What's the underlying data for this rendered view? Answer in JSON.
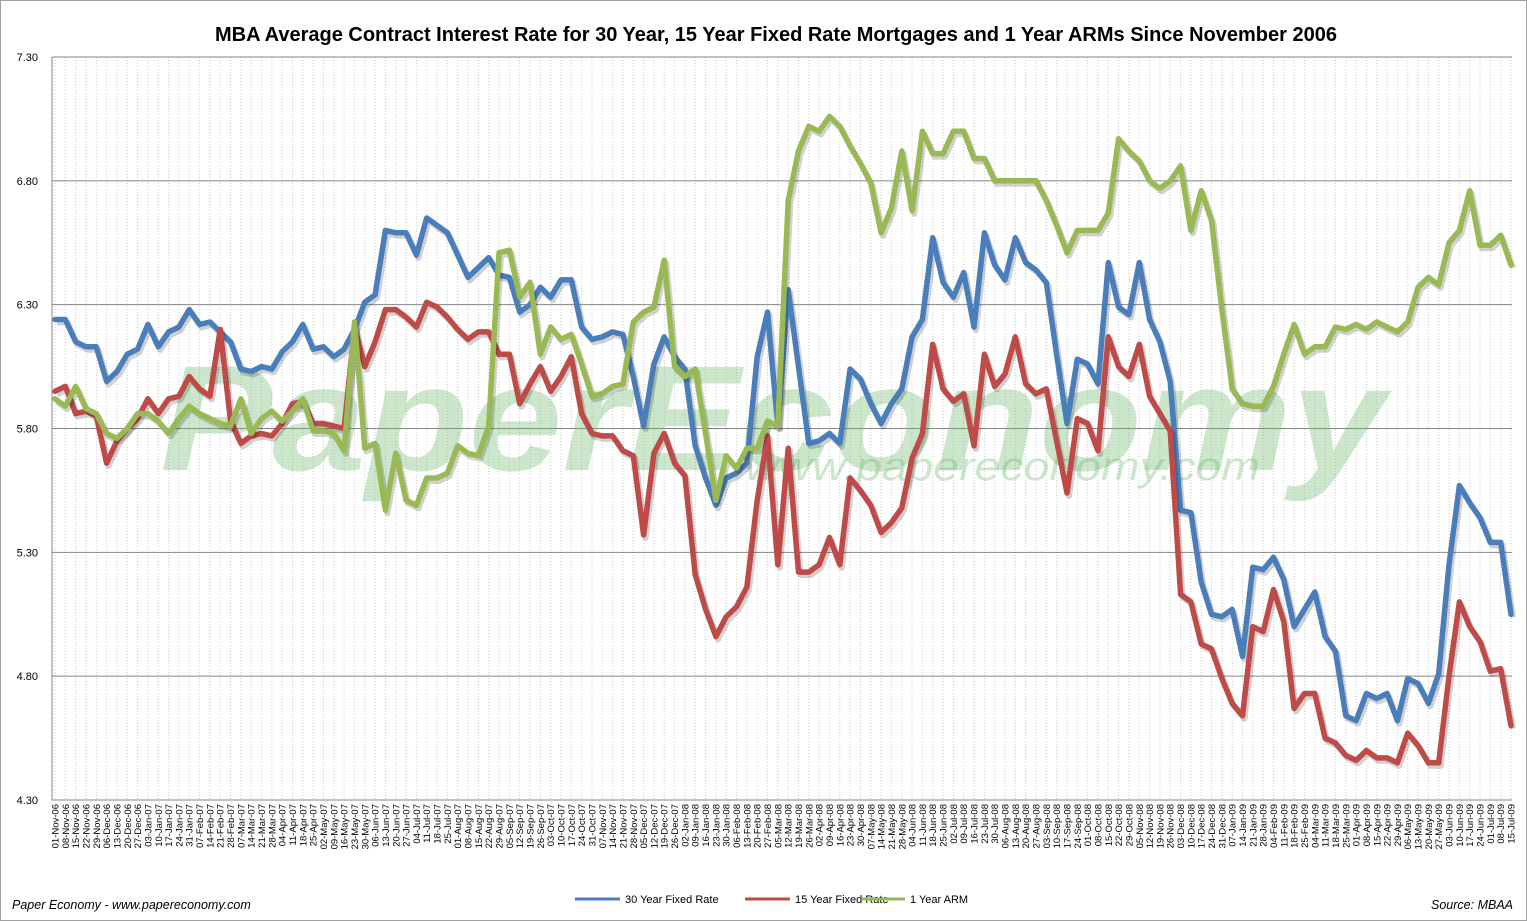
{
  "chart_data": {
    "type": "line",
    "title": "MBA Average Contract Interest Rate for 30 Year, 15 Year Fixed Rate Mortgages and 1 Year ARMs Since November 2006",
    "xlabel": "",
    "ylabel": "",
    "ylim": [
      4.3,
      7.3
    ],
    "yticks": [
      "4.30",
      "4.80",
      "5.30",
      "5.80",
      "6.30",
      "6.80",
      "7.30"
    ],
    "grid": {
      "horizontal": true,
      "vertical": "dotted"
    },
    "legend_position": "bottom",
    "categories": [
      "01-Nov-06",
      "08-Nov-06",
      "15-Nov-06",
      "22-Nov-06",
      "29-Nov-06",
      "06-Dec-06",
      "13-Dec-06",
      "20-Dec-06",
      "27-Dec-06",
      "03-Jan-07",
      "10-Jan-07",
      "17-Jan-07",
      "24-Jan-07",
      "31-Jan-07",
      "07-Feb-07",
      "14-Feb-07",
      "21-Feb-07",
      "28-Feb-07",
      "07-Mar-07",
      "14-Mar-07",
      "21-Mar-07",
      "28-Mar-07",
      "04-Apr-07",
      "11-Apr-07",
      "18-Apr-07",
      "25-Apr-07",
      "02-May-07",
      "09-May-07",
      "16-May-07",
      "23-May-07",
      "30-May-07",
      "06-Jun-07",
      "13-Jun-07",
      "20-Jun-07",
      "27-Jun-07",
      "04-Jul-07",
      "11-Jul-07",
      "18-Jul-07",
      "25-Jul-07",
      "01-Aug-07",
      "08-Aug-07",
      "15-Aug-07",
      "22-Aug-07",
      "29-Aug-07",
      "05-Sep-07",
      "12-Sep-07",
      "19-Sep-07",
      "26-Sep-07",
      "03-Oct-07",
      "10-Oct-07",
      "17-Oct-07",
      "24-Oct-07",
      "31-Oct-07",
      "07-Nov-07",
      "14-Nov-07",
      "21-Nov-07",
      "28-Nov-07",
      "05-Dec-07",
      "12-Dec-07",
      "19-Dec-07",
      "26-Dec-07",
      "02-Jan-08",
      "09-Jan-08",
      "16-Jan-08",
      "23-Jan-08",
      "30-Jan-08",
      "06-Feb-08",
      "13-Feb-08",
      "20-Feb-08",
      "27-Feb-08",
      "05-Mar-08",
      "12-Mar-08",
      "19-Mar-08",
      "26-Mar-08",
      "02-Apr-08",
      "09-Apr-08",
      "16-Apr-08",
      "23-Apr-08",
      "30-Apr-08",
      "07-May-08",
      "14-May-08",
      "21-May-08",
      "28-May-08",
      "04-Jun-08",
      "11-Jun-08",
      "18-Jun-08",
      "25-Jun-08",
      "02-Jul-08",
      "09-Jul-08",
      "16-Jul-08",
      "23-Jul-08",
      "30-Jul-08",
      "06-Aug-08",
      "13-Aug-08",
      "20-Aug-08",
      "27-Aug-08",
      "03-Sep-08",
      "10-Sep-08",
      "17-Sep-08",
      "24-Sep-08",
      "01-Oct-08",
      "08-Oct-08",
      "15-Oct-08",
      "22-Oct-08",
      "29-Oct-08",
      "05-Nov-08",
      "12-Nov-08",
      "19-Nov-08",
      "26-Nov-08",
      "03-Dec-08",
      "10-Dec-08",
      "17-Dec-08",
      "24-Dec-08",
      "31-Dec-08",
      "07-Jan-09",
      "14-Jan-09",
      "21-Jan-09",
      "28-Jan-09",
      "04-Feb-09",
      "11-Feb-09",
      "18-Feb-09",
      "25-Feb-09",
      "04-Mar-09",
      "11-Mar-09",
      "18-Mar-09",
      "25-Mar-09",
      "01-Apr-09",
      "08-Apr-09",
      "15-Apr-09",
      "22-Apr-09",
      "29-Apr-09",
      "06-May-09",
      "13-May-09",
      "20-May-09",
      "27-May-09",
      "03-Jun-09",
      "10-Jun-09",
      "17-Jun-09",
      "24-Jun-09",
      "01-Jul-09",
      "08-Jul-09",
      "15-Jul-09"
    ],
    "series": [
      {
        "name": "30 Year Fixed Rate",
        "color": "#4a7ebb",
        "values": [
          6.24,
          6.24,
          6.15,
          6.13,
          6.13,
          5.99,
          6.03,
          6.1,
          6.12,
          6.22,
          6.13,
          6.19,
          6.21,
          6.28,
          6.22,
          6.23,
          6.19,
          6.15,
          6.04,
          6.03,
          6.05,
          6.04,
          6.11,
          6.15,
          6.22,
          6.12,
          6.13,
          6.09,
          6.12,
          6.2,
          6.31,
          6.34,
          6.6,
          6.59,
          6.59,
          6.5,
          6.65,
          6.62,
          6.59,
          6.5,
          6.41,
          6.45,
          6.49,
          6.42,
          6.41,
          6.27,
          6.3,
          6.37,
          6.33,
          6.4,
          6.4,
          6.21,
          6.16,
          6.17,
          6.19,
          6.18,
          6.01,
          5.81,
          6.06,
          6.17,
          6.09,
          6.04,
          5.73,
          5.6,
          5.49,
          5.6,
          5.62,
          5.66,
          6.09,
          6.27,
          5.81,
          6.36,
          6.05,
          5.74,
          5.75,
          5.78,
          5.74,
          6.04,
          6.0,
          5.9,
          5.82,
          5.9,
          5.96,
          6.17,
          6.24,
          6.57,
          6.39,
          6.33,
          6.43,
          6.21,
          6.59,
          6.46,
          6.4,
          6.57,
          6.47,
          6.44,
          6.39,
          6.1,
          5.82,
          6.08,
          6.06,
          5.98,
          6.47,
          6.29,
          6.26,
          6.47,
          6.24,
          6.15,
          5.99,
          5.47,
          5.46,
          5.18,
          5.05,
          5.04,
          5.07,
          4.88,
          5.24,
          5.23,
          5.28,
          5.19,
          5.0,
          5.07,
          5.14,
          4.96,
          4.9,
          4.64,
          4.62,
          4.73,
          4.71,
          4.73,
          4.62,
          4.79,
          4.77,
          4.69,
          4.81,
          5.25,
          5.57,
          5.5,
          5.44,
          5.34,
          5.34,
          5.05
        ]
      },
      {
        "name": "15 Year Fixed Rate",
        "color": "#be4b48",
        "values": [
          5.95,
          5.97,
          5.86,
          5.87,
          5.85,
          5.66,
          5.75,
          5.8,
          5.84,
          5.92,
          5.86,
          5.92,
          5.93,
          6.01,
          5.96,
          5.93,
          6.2,
          5.83,
          5.74,
          5.77,
          5.78,
          5.77,
          5.82,
          5.9,
          5.91,
          5.82,
          5.82,
          5.81,
          5.8,
          6.21,
          6.05,
          6.15,
          6.28,
          6.28,
          6.25,
          6.21,
          6.31,
          6.29,
          6.25,
          6.2,
          6.16,
          6.19,
          6.19,
          6.1,
          6.1,
          5.9,
          5.98,
          6.05,
          5.95,
          6.01,
          6.09,
          5.86,
          5.78,
          5.77,
          5.77,
          5.71,
          5.69,
          5.37,
          5.7,
          5.78,
          5.66,
          5.61,
          5.21,
          5.07,
          4.96,
          5.04,
          5.08,
          5.16,
          5.51,
          5.77,
          5.25,
          5.72,
          5.22,
          5.22,
          5.25,
          5.36,
          5.25,
          5.6,
          5.55,
          5.49,
          5.38,
          5.42,
          5.48,
          5.68,
          5.78,
          6.14,
          5.96,
          5.91,
          5.94,
          5.73,
          6.1,
          5.97,
          6.02,
          6.17,
          5.98,
          5.94,
          5.96,
          5.75,
          5.54,
          5.84,
          5.82,
          5.71,
          6.17,
          6.05,
          6.01,
          6.14,
          5.93,
          5.86,
          5.79,
          5.13,
          5.1,
          4.93,
          4.91,
          4.79,
          4.69,
          4.64,
          5.0,
          4.98,
          5.15,
          5.02,
          4.67,
          4.73,
          4.73,
          4.55,
          4.53,
          4.48,
          4.46,
          4.5,
          4.47,
          4.47,
          4.45,
          4.57,
          4.52,
          4.45,
          4.45,
          4.8,
          5.1,
          5.0,
          4.94,
          4.82,
          4.83,
          4.6
        ]
      },
      {
        "name": "1 Year ARM",
        "color": "#98b954",
        "values": [
          5.92,
          5.89,
          5.97,
          5.88,
          5.86,
          5.78,
          5.76,
          5.8,
          5.86,
          5.86,
          5.83,
          5.78,
          5.84,
          5.89,
          5.86,
          5.84,
          5.82,
          5.81,
          5.92,
          5.78,
          5.84,
          5.87,
          5.83,
          5.87,
          5.92,
          5.79,
          5.79,
          5.78,
          5.71,
          6.23,
          5.72,
          5.74,
          5.47,
          5.7,
          5.51,
          5.49,
          5.6,
          5.6,
          5.62,
          5.73,
          5.7,
          5.69,
          5.81,
          6.51,
          6.52,
          6.33,
          6.39,
          6.1,
          6.21,
          6.16,
          6.18,
          6.06,
          5.93,
          5.94,
          5.97,
          5.98,
          6.23,
          6.27,
          6.29,
          6.48,
          6.05,
          6.01,
          6.04,
          5.78,
          5.51,
          5.69,
          5.64,
          5.72,
          5.72,
          5.83,
          5.81,
          6.72,
          6.92,
          7.02,
          7.0,
          7.06,
          7.02,
          6.94,
          6.87,
          6.79,
          6.59,
          6.69,
          6.92,
          6.68,
          7.0,
          6.91,
          6.91,
          7.0,
          7.0,
          6.89,
          6.89,
          6.8,
          6.8,
          6.8,
          6.8,
          6.8,
          6.72,
          6.62,
          6.51,
          6.6,
          6.6,
          6.6,
          6.67,
          6.97,
          6.92,
          6.88,
          6.8,
          6.77,
          6.8,
          6.86,
          6.6,
          6.76,
          6.64,
          6.28,
          5.96,
          5.9,
          5.89,
          5.89,
          5.97,
          6.1,
          6.22,
          6.1,
          6.13,
          6.13,
          6.21,
          6.2,
          6.22,
          6.2,
          6.23,
          6.21,
          6.19,
          6.23,
          6.37,
          6.41,
          6.38,
          6.55,
          6.6,
          6.76,
          6.54,
          6.54,
          6.58,
          6.46
        ]
      }
    ]
  },
  "footer": {
    "credit": "Paper Economy - www.papereconomy.com",
    "source": "Source: MBAA"
  },
  "watermark": {
    "logo": "PaperEconomy",
    "url": "www.papereconomy.com"
  }
}
